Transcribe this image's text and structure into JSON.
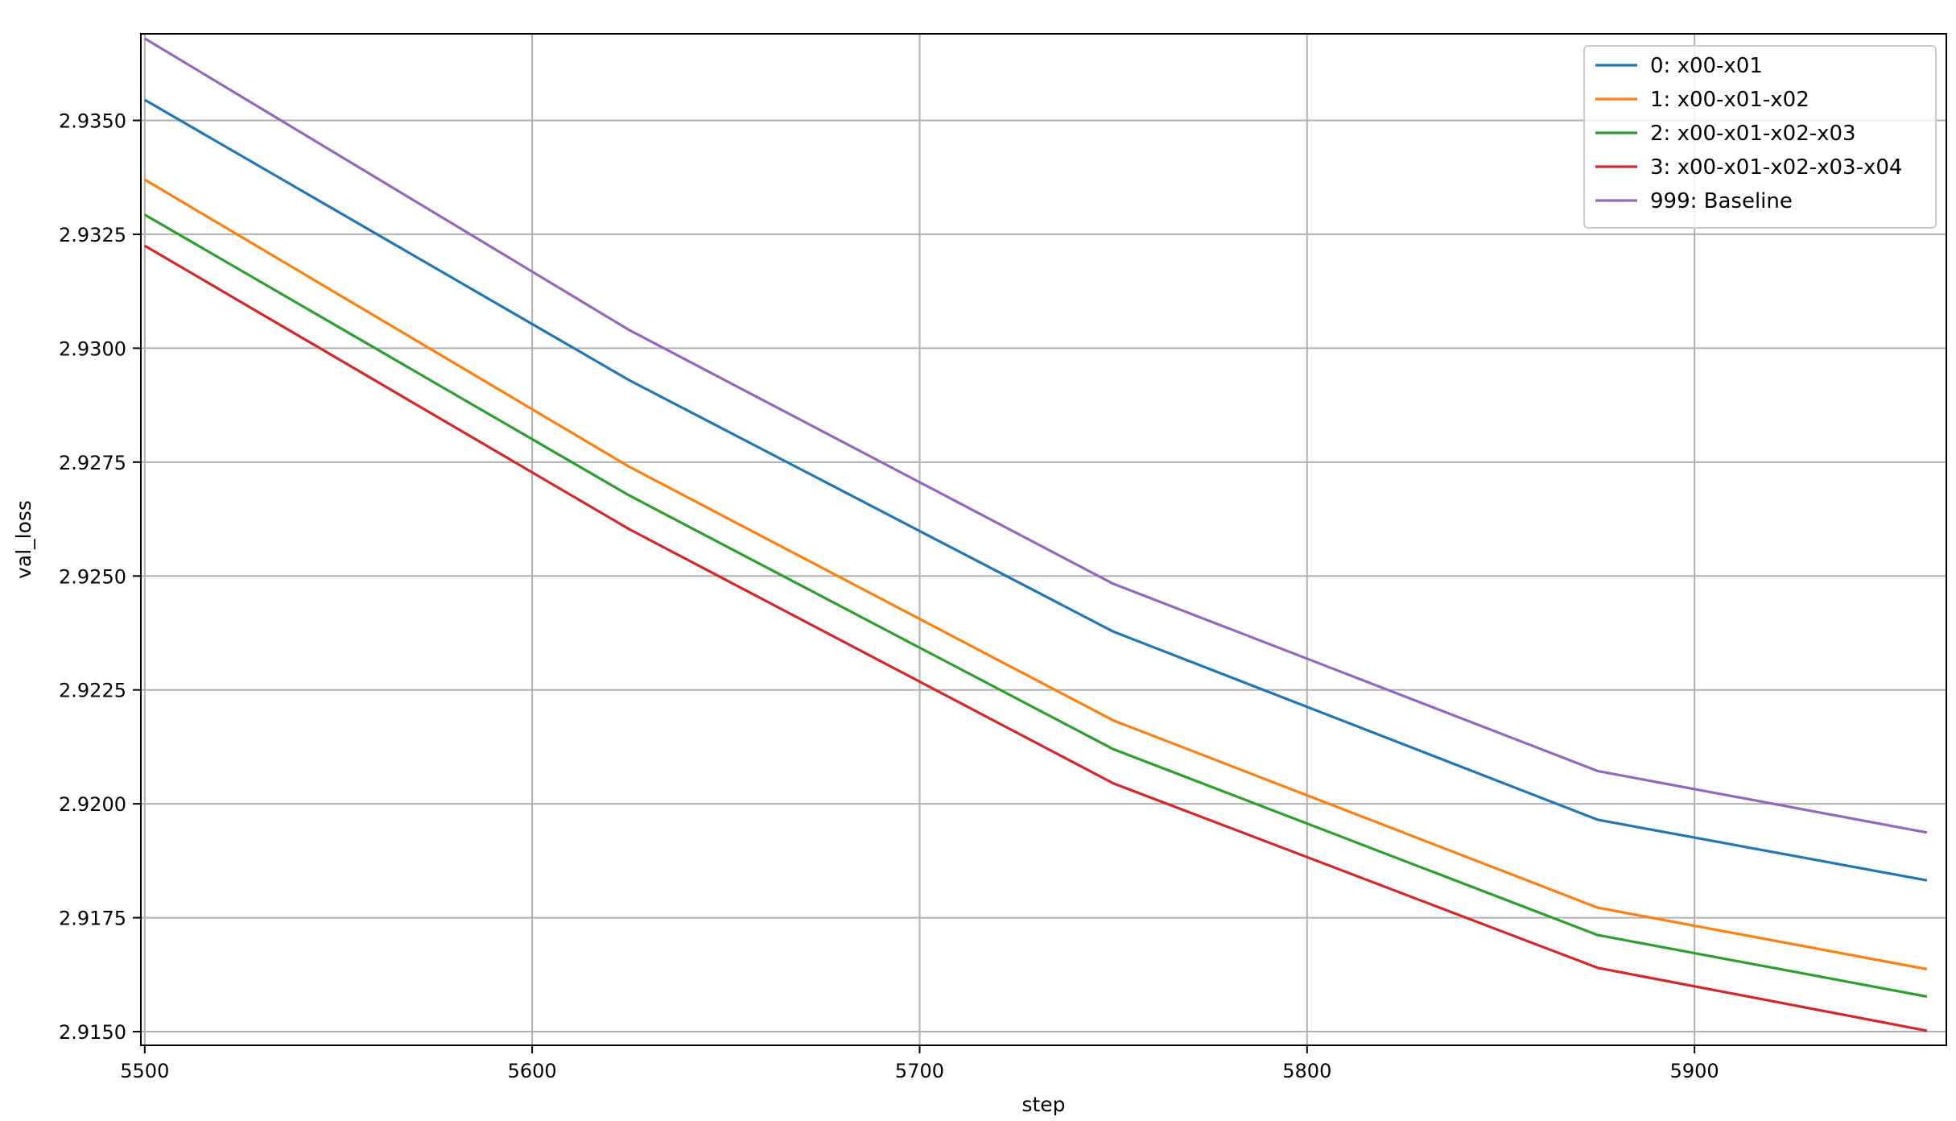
{
  "chart_data": {
    "type": "line",
    "title": "",
    "xlabel": "step",
    "ylabel": "val_loss",
    "xlim": [
      5499,
      5965
    ],
    "ylim": [
      2.9147,
      2.9369
    ],
    "xticks": [
      5500,
      5600,
      5700,
      5800,
      5900
    ],
    "yticks": [
      2.915,
      2.9175,
      2.92,
      2.9225,
      2.925,
      2.9275,
      2.93,
      2.9325,
      2.935
    ],
    "ytick_labels": [
      "2.9150",
      "2.9175",
      "2.9200",
      "2.9225",
      "2.9250",
      "2.9275",
      "2.9300",
      "2.9325",
      "2.9350"
    ],
    "grid": true,
    "legend_position": "top-right",
    "x": [
      5500,
      5625,
      5750,
      5875,
      5960
    ],
    "series": [
      {
        "name": "0: x00-x01",
        "color": "#1f77b4",
        "values": [
          2.93545,
          2.9293,
          2.92378,
          2.91965,
          2.91832
        ]
      },
      {
        "name": "1: x00-x01-x02",
        "color": "#ff7f0e",
        "values": [
          2.9337,
          2.9274,
          2.92183,
          2.91772,
          2.91637
        ]
      },
      {
        "name": "2: x00-x01-x02-x03",
        "color": "#2ca02c",
        "values": [
          2.93293,
          2.92677,
          2.9212,
          2.91712,
          2.91577
        ]
      },
      {
        "name": "3: x00-x01-x02-x03-x04",
        "color": "#d62728",
        "values": [
          2.93225,
          2.92603,
          2.92045,
          2.9164,
          2.91502
        ]
      },
      {
        "name": "999: Baseline",
        "color": "#9467bd",
        "values": [
          2.9368,
          2.9304,
          2.92483,
          2.92072,
          2.91937
        ]
      }
    ]
  }
}
